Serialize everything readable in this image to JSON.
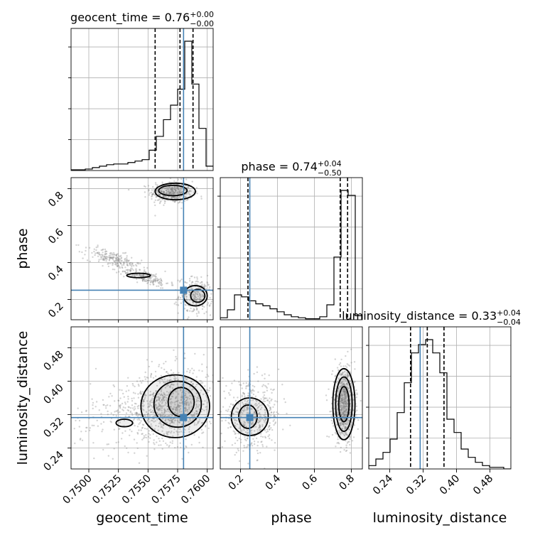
{
  "chart_data": {
    "type": "corner",
    "parameters": [
      "geocent_time",
      "phase",
      "luminosity_distance"
    ],
    "axis_labels": {
      "geocent_time": "geocent_time",
      "phase": "phase",
      "luminosity_distance": "luminosity_distance"
    },
    "ranges": {
      "geocent_time": [
        0.7485,
        0.7605
      ],
      "phase": [
        0.09,
        0.86
      ],
      "luminosity_distance": [
        0.19,
        0.53
      ]
    },
    "ticks": {
      "geocent_time": [
        {
          "value": 0.75,
          "label": "0.7500"
        },
        {
          "value": 0.7525,
          "label": "0.7525"
        },
        {
          "value": 0.755,
          "label": "0.7550"
        },
        {
          "value": 0.7575,
          "label": "0.7575"
        },
        {
          "value": 0.76,
          "label": "0.7600"
        }
      ],
      "phase": [
        {
          "value": 0.2,
          "label": "0.2"
        },
        {
          "value": 0.4,
          "label": "0.4"
        },
        {
          "value": 0.6,
          "label": "0.6"
        },
        {
          "value": 0.8,
          "label": "0.8"
        }
      ],
      "luminosity_distance": [
        {
          "value": 0.24,
          "label": "0.24"
        },
        {
          "value": 0.32,
          "label": "0.32"
        },
        {
          "value": 0.4,
          "label": "0.40"
        },
        {
          "value": 0.48,
          "label": "0.48"
        }
      ]
    },
    "titles": [
      {
        "param": "geocent_time",
        "main": "geocent_time = 0.76",
        "plus": "+0.00",
        "minus": "−0.00"
      },
      {
        "param": "phase",
        "main": "phase = 0.74",
        "plus": "+0.04",
        "minus": "−0.50"
      },
      {
        "param": "luminosity_distance",
        "main": "luminosity_distance = 0.33",
        "plus": "+0.04",
        "minus": "−0.04"
      }
    ],
    "quantiles": {
      "geocent_time": [
        0.7556,
        0.7577,
        0.7588
      ],
      "phase": [
        0.24,
        0.74,
        0.78
      ],
      "luminosity_distance": [
        0.29,
        0.33,
        0.37
      ]
    },
    "truths": {
      "geocent_time": 0.758,
      "phase": 0.25,
      "luminosity_distance": 0.313
    },
    "histograms": {
      "geocent_time": {
        "edges": [
          0.7485,
          0.7491,
          0.7497,
          0.7503,
          0.7509,
          0.7515,
          0.7521,
          0.7527,
          0.7533,
          0.7539,
          0.7545,
          0.7551,
          0.7557,
          0.7563,
          0.7569,
          0.7575,
          0.7581,
          0.7587,
          0.7593,
          0.7599,
          0.7605
        ],
        "counts": [
          1,
          1,
          2,
          4,
          6,
          8,
          9,
          9,
          11,
          13,
          15,
          28,
          47,
          70,
          90,
          112,
          178,
          119,
          58,
          6
        ]
      },
      "phase": {
        "edges": [
          0.09,
          0.1285,
          0.167,
          0.2055,
          0.244,
          0.2825,
          0.321,
          0.3595,
          0.398,
          0.4365,
          0.475,
          0.5135,
          0.552,
          0.5905,
          0.629,
          0.6675,
          0.706,
          0.7445,
          0.783,
          0.8215,
          0.86
        ],
        "counts": [
          2,
          10,
          25,
          23,
          19,
          16,
          14,
          11,
          8,
          5,
          3,
          2,
          1,
          1,
          3,
          15,
          63,
          130,
          125,
          4
        ]
      },
      "luminosity_distance": {
        "edges": [
          0.19,
          0.207,
          0.224,
          0.241,
          0.258,
          0.275,
          0.292,
          0.309,
          0.326,
          0.343,
          0.36,
          0.377,
          0.394,
          0.411,
          0.428,
          0.445,
          0.462,
          0.479,
          0.496,
          0.513,
          0.53
        ],
        "counts": [
          2,
          6,
          10,
          18,
          34,
          52,
          70,
          75,
          78,
          70,
          58,
          30,
          22,
          12,
          7,
          4,
          2,
          1,
          1,
          0
        ]
      }
    },
    "pairs": [
      {
        "x": "geocent_time",
        "y": "phase",
        "clusters": [
          {
            "x": 0.757,
            "y": 0.78,
            "sx": 0.0009,
            "sy": 0.03,
            "rho": 0,
            "n": 420
          },
          {
            "x": 0.759,
            "y": 0.22,
            "sx": 0.0007,
            "sy": 0.05,
            "rho": 0,
            "n": 240
          },
          {
            "x": 0.752,
            "y": 0.42,
            "sx": 0.0012,
            "sy": 0.03,
            "rho": -0.7,
            "n": 200
          },
          {
            "x": 0.7548,
            "y": 0.32,
            "sx": 0.001,
            "sy": 0.025,
            "rho": -0.7,
            "n": 180
          }
        ],
        "contours": [
          {
            "cx": 0.7573,
            "cy": 0.785,
            "rx": 0.0017,
            "ry": 0.045,
            "rot": 0
          },
          {
            "cx": 0.7571,
            "cy": 0.79,
            "rx": 0.0012,
            "ry": 0.028,
            "rot": 0
          },
          {
            "cx": 0.759,
            "cy": 0.22,
            "rx": 0.001,
            "ry": 0.055,
            "rot": 0
          },
          {
            "cx": 0.7592,
            "cy": 0.22,
            "rx": 0.0006,
            "ry": 0.035,
            "rot": 0
          },
          {
            "cx": 0.7542,
            "cy": 0.33,
            "rx": 0.001,
            "ry": 0.012,
            "rot": 0
          }
        ]
      },
      {
        "x": "geocent_time",
        "y": "luminosity_distance",
        "clusters": [
          {
            "x": 0.757,
            "y": 0.345,
            "sx": 0.0018,
            "sy": 0.045,
            "rho": 0.1,
            "n": 800
          },
          {
            "x": 0.754,
            "y": 0.32,
            "sx": 0.003,
            "sy": 0.04,
            "rho": 0,
            "n": 250
          }
        ],
        "contours": [
          {
            "cx": 0.7573,
            "cy": 0.34,
            "rx": 0.0029,
            "ry": 0.075,
            "rot": 0
          },
          {
            "cx": 0.7575,
            "cy": 0.345,
            "rx": 0.002,
            "ry": 0.055,
            "rot": 0
          },
          {
            "cx": 0.7578,
            "cy": 0.35,
            "rx": 0.0011,
            "ry": 0.035,
            "rot": 0
          },
          {
            "cx": 0.753,
            "cy": 0.3,
            "rx": 0.0007,
            "ry": 0.009,
            "rot": 0
          }
        ]
      },
      {
        "x": "phase",
        "y": "luminosity_distance",
        "clusters": [
          {
            "x": 0.76,
            "y": 0.345,
            "sx": 0.03,
            "sy": 0.045,
            "rho": 0,
            "n": 650
          },
          {
            "x": 0.26,
            "y": 0.315,
            "sx": 0.08,
            "sy": 0.04,
            "rho": 0,
            "n": 500
          }
        ],
        "contours": [
          {
            "cx": 0.76,
            "cy": 0.345,
            "rx": 0.06,
            "ry": 0.085,
            "rot": 0
          },
          {
            "cx": 0.76,
            "cy": 0.345,
            "rx": 0.045,
            "ry": 0.065,
            "rot": 0
          },
          {
            "cx": 0.76,
            "cy": 0.345,
            "rx": 0.028,
            "ry": 0.042,
            "rot": 0
          },
          {
            "cx": 0.25,
            "cy": 0.315,
            "rx": 0.1,
            "ry": 0.045,
            "rot": 0
          },
          {
            "cx": 0.24,
            "cy": 0.315,
            "rx": 0.05,
            "ry": 0.028,
            "rot": 0
          }
        ]
      }
    ],
    "colors": {
      "truth": "#4682b4",
      "histogram": "#000000",
      "contour": "#000000",
      "grid": "#b0b0b0",
      "point": "#808080"
    },
    "grid": true
  }
}
